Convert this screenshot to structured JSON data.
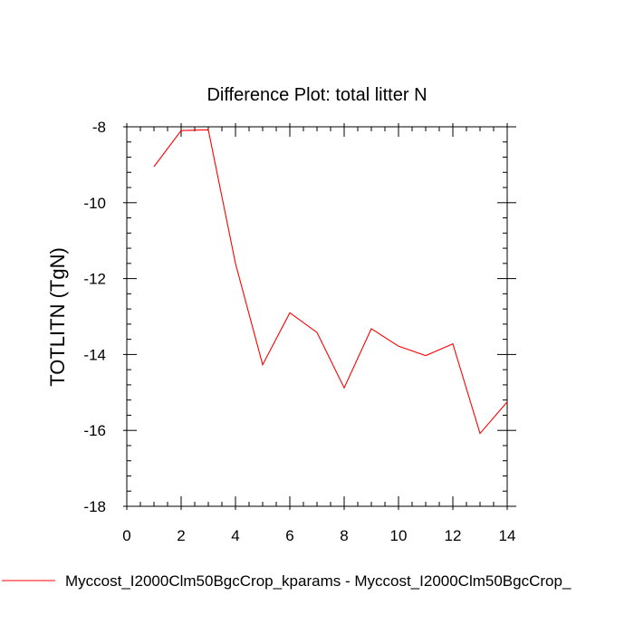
{
  "chart_data": {
    "type": "line",
    "title": "Difference Plot: total litter N",
    "xlabel": "",
    "ylabel": "TOTLITN  (TgN)",
    "xlim": [
      0,
      14
    ],
    "ylim": [
      -18,
      -8
    ],
    "x_ticks": [
      0,
      2,
      4,
      6,
      8,
      10,
      12,
      14
    ],
    "y_ticks": [
      -8,
      -10,
      -12,
      -14,
      -16,
      -18
    ],
    "x_tick_labels": [
      "0",
      "2",
      "4",
      "6",
      "8",
      "10",
      "12",
      "14"
    ],
    "y_tick_labels": [
      "-8",
      "-10",
      "-12",
      "-14",
      "-16",
      "-18"
    ],
    "grid": false,
    "legend_position": "bottom",
    "series": [
      {
        "name": "Myccost_I2000Clm50BgcCrop_kparams - Myccost_I2000Clm50BgcCrop_",
        "color": "#ff0000",
        "x": [
          1,
          2,
          3,
          4,
          5,
          6,
          7,
          8,
          9,
          10,
          11,
          12,
          13,
          14
        ],
        "y": [
          -9.05,
          -8.1,
          -8.08,
          -11.6,
          -14.27,
          -12.9,
          -13.42,
          -14.88,
          -13.32,
          -13.78,
          -14.03,
          -13.72,
          -16.08,
          -15.25
        ]
      }
    ]
  }
}
